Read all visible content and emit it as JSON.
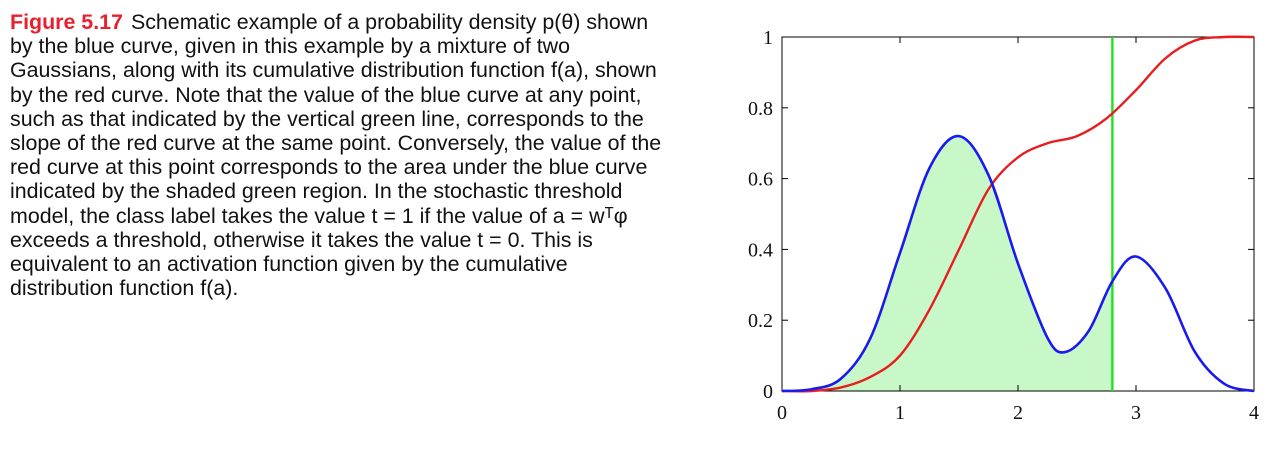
{
  "caption": {
    "label": "Figure 5.17",
    "text": "Schematic example of a probability density p(θ) shown by the blue curve, given in this example by a mixture of two Gaussians, along with its cumulative distribution function f(a), shown by the red curve. Note that the value of the blue curve at any point, such as that indicated by the vertical green line, corresponds to the slope of the red curve at the same point. Conversely, the value of the red curve at this point corresponds to the area under the blue curve indicated by the shaded green region. In the stochastic threshold model, the class label takes the value t = 1 if the value of a = wᵀφ exceeds a threshold, otherwise it takes the value t = 0. This is equivalent to an activation function given by the cumulative distribution function f(a)."
  },
  "chart_data": {
    "type": "line",
    "xlim": [
      0,
      4
    ],
    "ylim": [
      0,
      1
    ],
    "xticks": [
      "0",
      "1",
      "2",
      "3",
      "4"
    ],
    "yticks": [
      "0",
      "0.2",
      "0.4",
      "0.6",
      "0.8",
      "1"
    ],
    "grid": false,
    "threshold_x": 2.8,
    "series": [
      {
        "color": "#1a1af0",
        "x": [
          0,
          0.25,
          0.5,
          0.75,
          1.0,
          1.25,
          1.5,
          1.75,
          2.0,
          2.25,
          2.4,
          2.6,
          2.8,
          3.0,
          3.25,
          3.5,
          3.75,
          4.0
        ],
        "y": [
          0.0,
          0.005,
          0.035,
          0.15,
          0.39,
          0.63,
          0.72,
          0.61,
          0.36,
          0.15,
          0.11,
          0.17,
          0.31,
          0.38,
          0.29,
          0.11,
          0.02,
          0.0
        ]
      },
      {
        "color": "#e81e1e",
        "x": [
          0,
          0.25,
          0.5,
          0.75,
          1.0,
          1.25,
          1.5,
          1.75,
          2.0,
          2.25,
          2.5,
          2.75,
          3.0,
          3.25,
          3.5,
          3.75,
          4.0
        ],
        "y": [
          0.0,
          0.0,
          0.01,
          0.04,
          0.1,
          0.23,
          0.4,
          0.57,
          0.66,
          0.7,
          0.72,
          0.77,
          0.85,
          0.94,
          0.99,
          1.0,
          1.0
        ]
      }
    ],
    "shade_color": "#c8f8c8",
    "threshold_color": "#22e022"
  }
}
